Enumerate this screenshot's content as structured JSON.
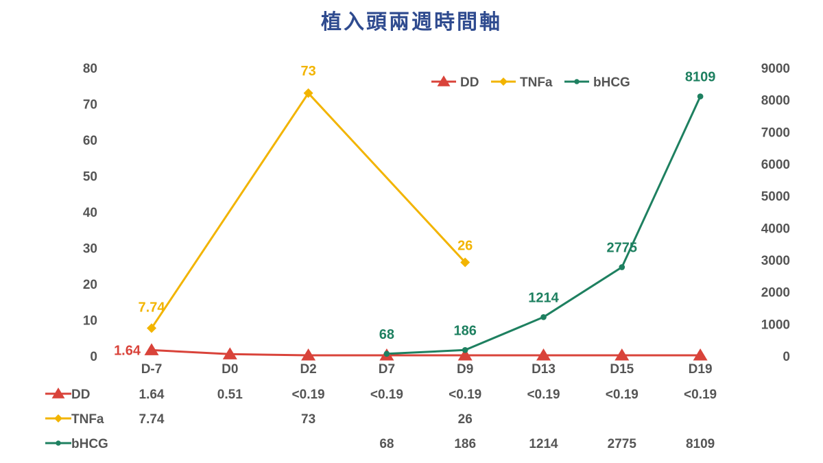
{
  "chart_data": {
    "type": "line",
    "title": "植入頭兩週時間軸",
    "categories": [
      "D-7",
      "D0",
      "D2",
      "D7",
      "D9",
      "D13",
      "D15",
      "D19"
    ],
    "y_left": {
      "range": [
        0,
        80
      ],
      "ticks": [
        "0",
        "10",
        "20",
        "30",
        "40",
        "50",
        "60",
        "70",
        "80"
      ]
    },
    "y_right": {
      "range": [
        0,
        9000
      ],
      "ticks": [
        "0",
        "1000",
        "2000",
        "3000",
        "4000",
        "5000",
        "6000",
        "7000",
        "8000",
        "9000"
      ]
    },
    "legend_position": "top-right",
    "grid": false,
    "series": [
      {
        "name": "DD",
        "axis": "left",
        "color": "#d9433a",
        "marker": "triangle",
        "values": [
          1.64,
          0.51,
          0.19,
          0.19,
          0.19,
          0.19,
          0.19,
          0.19
        ],
        "value_labels": [
          "1.64",
          "",
          "",
          "",
          "",
          "",
          "",
          ""
        ],
        "table_values": [
          "1.64",
          "0.51",
          "<0.19",
          "<0.19",
          "<0.19",
          "<0.19",
          "<0.19",
          "<0.19"
        ]
      },
      {
        "name": "TNFa",
        "axis": "left",
        "color": "#f2b400",
        "marker": "diamond",
        "values": [
          7.74,
          null,
          73,
          null,
          26,
          null,
          null,
          null
        ],
        "value_labels": [
          "7.74",
          "",
          "73",
          "",
          "26",
          "",
          "",
          ""
        ],
        "table_values": [
          "7.74",
          "",
          "73",
          "",
          "26",
          "",
          "",
          ""
        ]
      },
      {
        "name": "bHCG",
        "axis": "right",
        "color": "#1e8060",
        "marker": "circle",
        "values": [
          null,
          null,
          null,
          68,
          186,
          1214,
          2775,
          8109
        ],
        "value_labels": [
          "",
          "",
          "",
          "68",
          "186",
          "1214",
          "2775",
          "8109"
        ],
        "table_values": [
          "",
          "",
          "",
          "68",
          "186",
          "1214",
          "2775",
          "8109"
        ]
      }
    ]
  }
}
